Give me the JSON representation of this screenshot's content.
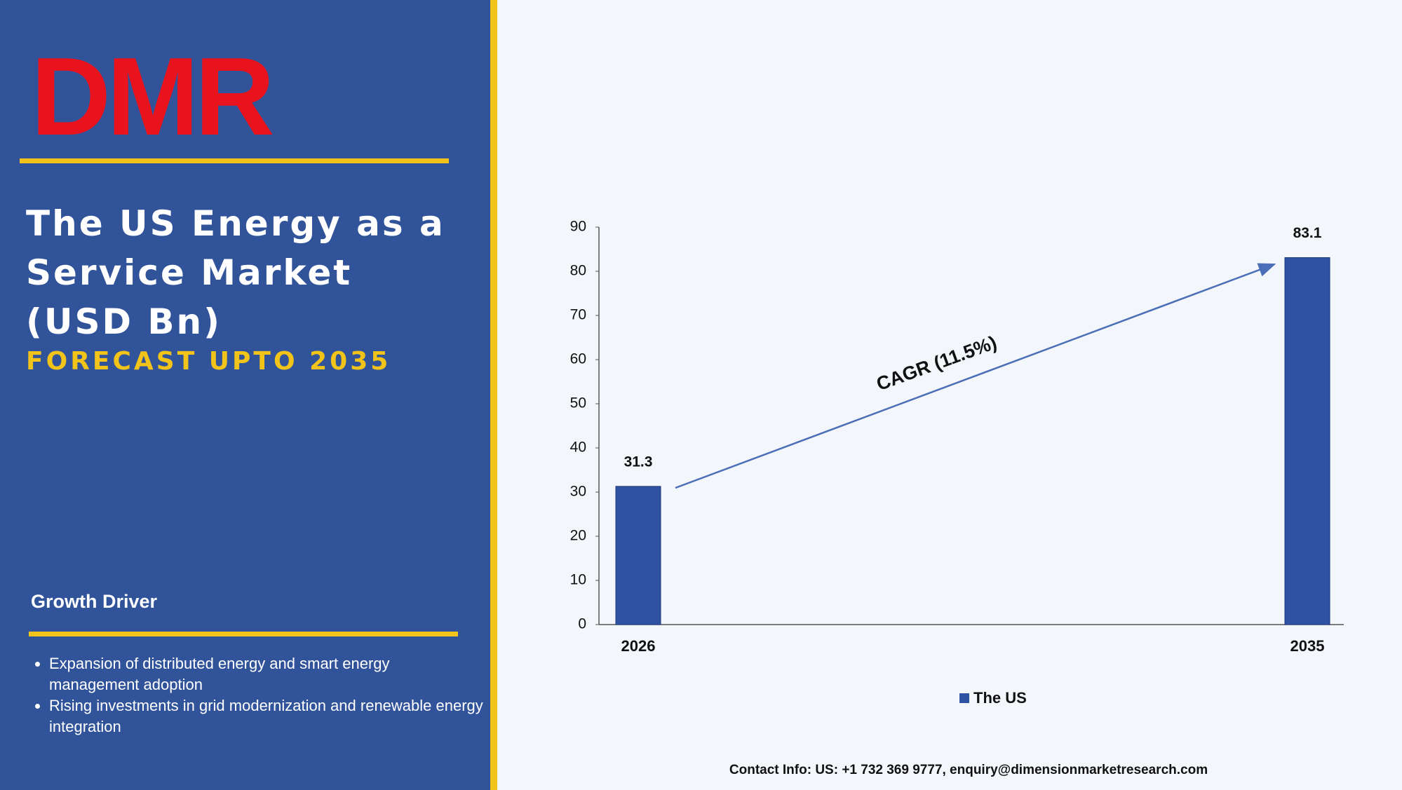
{
  "logo": "DMR",
  "sidebar": {
    "title_lines": [
      "The US Energy as a",
      "Service Market",
      "(USD Bn)"
    ],
    "subtitle": "FORECAST UPTO 2035",
    "growth_heading": "Growth Driver",
    "bullets": [
      "Expansion of distributed energy and smart energy management adoption",
      "Rising investments in grid modernization and renewable energy integration"
    ]
  },
  "chart_data": {
    "type": "bar",
    "categories": [
      "2026",
      "2035"
    ],
    "series": [
      {
        "name": "The US",
        "color": "#2f53a3",
        "values": [
          31.3,
          83.1
        ]
      }
    ],
    "ylim": [
      0,
      90
    ],
    "yticks": [
      0,
      10,
      20,
      30,
      40,
      50,
      60,
      70,
      80,
      90
    ],
    "annotation": "CAGR (11.5%)"
  },
  "contact": "Contact Info: US: +1 732 369 9777, enquiry@dimensionmarketresearch.com"
}
